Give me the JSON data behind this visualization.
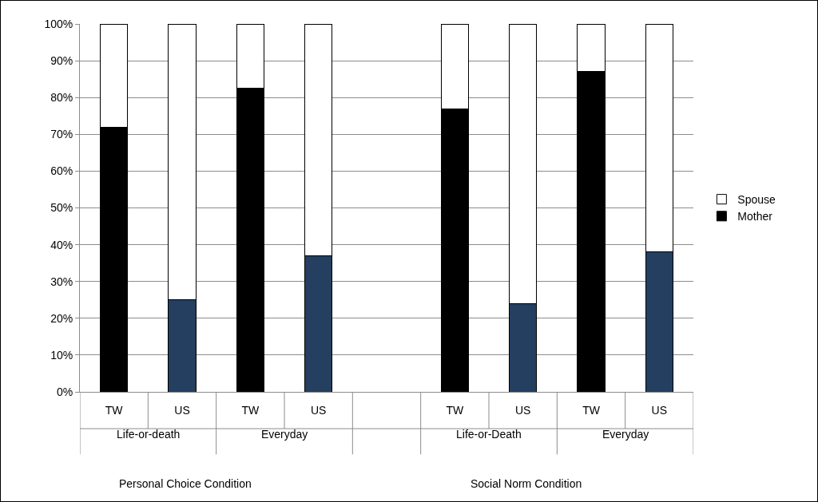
{
  "chart_data": {
    "type": "bar",
    "stacked": true,
    "categories": [
      "TW",
      "US",
      "TW",
      "US",
      null,
      "TW",
      "US",
      "TW",
      "US"
    ],
    "series": [
      {
        "name": "Mother",
        "colors": [
          "#000000",
          "#243f60",
          "#000000",
          "#243f60",
          null,
          "#000000",
          "#243f60",
          "#000000",
          "#243f60"
        ],
        "color": "#000000",
        "values": [
          72,
          25,
          82.5,
          37,
          null,
          77,
          24,
          87,
          38
        ]
      },
      {
        "name": "Spouse",
        "color": "#ffffff",
        "values": [
          28,
          75,
          17.5,
          63,
          null,
          23,
          76,
          13,
          62
        ]
      }
    ],
    "ylim": [
      0,
      100
    ],
    "yticks": [
      {
        "value": 0,
        "label": "0%"
      },
      {
        "value": 10,
        "label": "10%"
      },
      {
        "value": 20,
        "label": "20%"
      },
      {
        "value": 30,
        "label": "30%"
      },
      {
        "value": 40,
        "label": "40%"
      },
      {
        "value": 50,
        "label": "50%"
      },
      {
        "value": 60,
        "label": "60%"
      },
      {
        "value": 70,
        "label": "70%"
      },
      {
        "value": 80,
        "label": "80%"
      },
      {
        "value": 90,
        "label": "90%"
      },
      {
        "value": 100,
        "label": "100%"
      }
    ],
    "grid": "y",
    "legend": "right",
    "annotations": [
      "Life-or-death",
      "Everyday",
      "Life-or-Death",
      "Everyday",
      "Personal Choice Condition",
      "Social Norm Condition"
    ]
  }
}
